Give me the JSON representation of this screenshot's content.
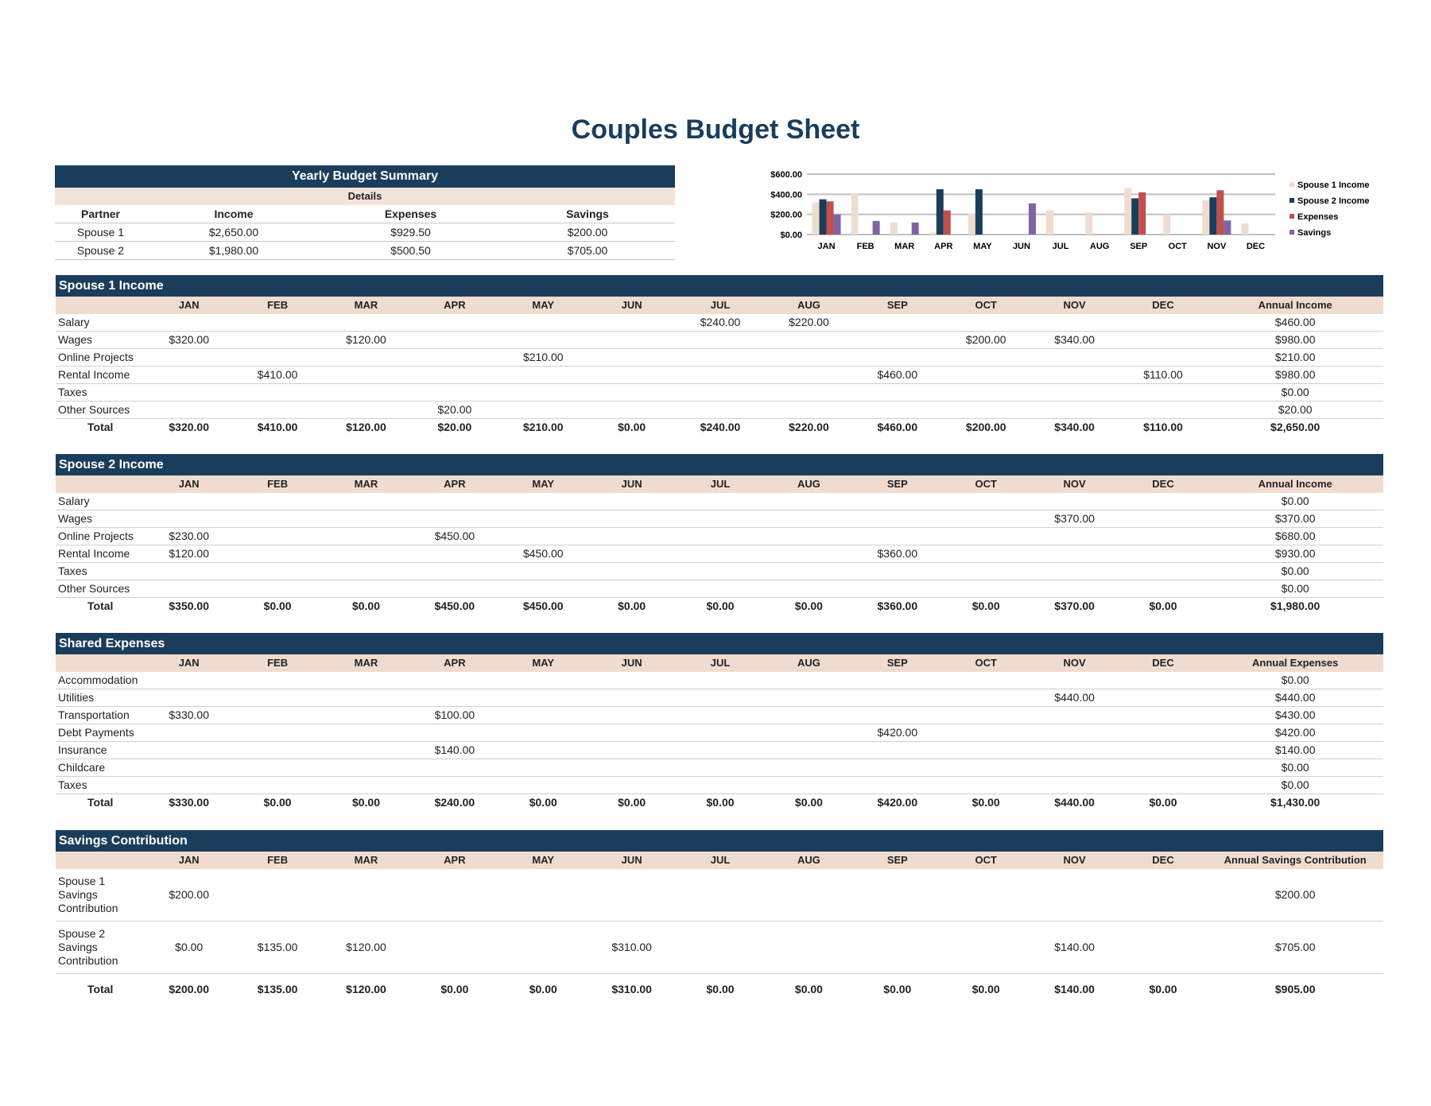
{
  "title": "Couples Budget Sheet",
  "summary": {
    "heading": "Yearly Budget Summary",
    "subheading": "Details",
    "columns": [
      "Partner",
      "Income",
      "Expenses",
      "Savings"
    ],
    "rows": [
      [
        "Spouse 1",
        "$2,650.00",
        "$929.50",
        "$200.00"
      ],
      [
        "Spouse 2",
        "$1,980.00",
        "$500.50",
        "$705.00"
      ]
    ]
  },
  "months": [
    "JAN",
    "FEB",
    "MAR",
    "APR",
    "MAY",
    "JUN",
    "JUL",
    "AUG",
    "SEP",
    "OCT",
    "NOV",
    "DEC"
  ],
  "sections": [
    {
      "title": "Spouse 1 Income",
      "annual_label": "Annual Income",
      "rows": [
        {
          "label": "Salary",
          "values": [
            "",
            "",
            "",
            "",
            "",
            "",
            "$240.00",
            "$220.00",
            "",
            "",
            "",
            ""
          ],
          "annual": "$460.00"
        },
        {
          "label": "Wages",
          "values": [
            "$320.00",
            "",
            "$120.00",
            "",
            "",
            "",
            "",
            "",
            "",
            "$200.00",
            "$340.00",
            ""
          ],
          "annual": "$980.00"
        },
        {
          "label": "Online Projects",
          "values": [
            "",
            "",
            "",
            "",
            "$210.00",
            "",
            "",
            "",
            "",
            "",
            "",
            ""
          ],
          "annual": "$210.00"
        },
        {
          "label": "Rental Income",
          "values": [
            "",
            "$410.00",
            "",
            "",
            "",
            "",
            "",
            "",
            "$460.00",
            "",
            "",
            "$110.00"
          ],
          "annual": "$980.00"
        },
        {
          "label": "Taxes",
          "values": [
            "",
            "",
            "",
            "",
            "",
            "",
            "",
            "",
            "",
            "",
            "",
            ""
          ],
          "annual": "$0.00"
        },
        {
          "label": "Other Sources",
          "values": [
            "",
            "",
            "",
            "$20.00",
            "",
            "",
            "",
            "",
            "",
            "",
            "",
            ""
          ],
          "annual": "$20.00"
        }
      ],
      "total": {
        "label": "Total",
        "values": [
          "$320.00",
          "$410.00",
          "$120.00",
          "$20.00",
          "$210.00",
          "$0.00",
          "$240.00",
          "$220.00",
          "$460.00",
          "$200.00",
          "$340.00",
          "$110.00"
        ],
        "annual": "$2,650.00"
      }
    },
    {
      "title": "Spouse 2 Income",
      "annual_label": "Annual Income",
      "rows": [
        {
          "label": "Salary",
          "values": [
            "",
            "",
            "",
            "",
            "",
            "",
            "",
            "",
            "",
            "",
            "",
            ""
          ],
          "annual": "$0.00"
        },
        {
          "label": "Wages",
          "values": [
            "",
            "",
            "",
            "",
            "",
            "",
            "",
            "",
            "",
            "",
            "$370.00",
            ""
          ],
          "annual": "$370.00"
        },
        {
          "label": "Online Projects",
          "values": [
            "$230.00",
            "",
            "",
            "$450.00",
            "",
            "",
            "",
            "",
            "",
            "",
            "",
            ""
          ],
          "annual": "$680.00"
        },
        {
          "label": "Rental Income",
          "values": [
            "$120.00",
            "",
            "",
            "",
            "$450.00",
            "",
            "",
            "",
            "$360.00",
            "",
            "",
            ""
          ],
          "annual": "$930.00"
        },
        {
          "label": "Taxes",
          "values": [
            "",
            "",
            "",
            "",
            "",
            "",
            "",
            "",
            "",
            "",
            "",
            ""
          ],
          "annual": "$0.00"
        },
        {
          "label": "Other Sources",
          "values": [
            "",
            "",
            "",
            "",
            "",
            "",
            "",
            "",
            "",
            "",
            "",
            ""
          ],
          "annual": "$0.00"
        }
      ],
      "total": {
        "label": "Total",
        "values": [
          "$350.00",
          "$0.00",
          "$0.00",
          "$450.00",
          "$450.00",
          "$0.00",
          "$0.00",
          "$0.00",
          "$360.00",
          "$0.00",
          "$370.00",
          "$0.00"
        ],
        "annual": "$1,980.00"
      }
    },
    {
      "title": "Shared Expenses",
      "annual_label": "Annual Expenses",
      "rows": [
        {
          "label": "Accommodation",
          "values": [
            "",
            "",
            "",
            "",
            "",
            "",
            "",
            "",
            "",
            "",
            "",
            ""
          ],
          "annual": "$0.00"
        },
        {
          "label": "Utilities",
          "values": [
            "",
            "",
            "",
            "",
            "",
            "",
            "",
            "",
            "",
            "",
            "$440.00",
            ""
          ],
          "annual": "$440.00"
        },
        {
          "label": "Transportation",
          "values": [
            "$330.00",
            "",
            "",
            "$100.00",
            "",
            "",
            "",
            "",
            "",
            "",
            "",
            ""
          ],
          "annual": "$430.00"
        },
        {
          "label": "Debt Payments",
          "values": [
            "",
            "",
            "",
            "",
            "",
            "",
            "",
            "",
            "$420.00",
            "",
            "",
            ""
          ],
          "annual": "$420.00"
        },
        {
          "label": "Insurance",
          "values": [
            "",
            "",
            "",
            "$140.00",
            "",
            "",
            "",
            "",
            "",
            "",
            "",
            ""
          ],
          "annual": "$140.00"
        },
        {
          "label": "Childcare",
          "values": [
            "",
            "",
            "",
            "",
            "",
            "",
            "",
            "",
            "",
            "",
            "",
            ""
          ],
          "annual": "$0.00"
        },
        {
          "label": "Taxes",
          "values": [
            "",
            "",
            "",
            "",
            "",
            "",
            "",
            "",
            "",
            "",
            "",
            ""
          ],
          "annual": "$0.00"
        }
      ],
      "total": {
        "label": "Total",
        "values": [
          "$330.00",
          "$0.00",
          "$0.00",
          "$240.00",
          "$0.00",
          "$0.00",
          "$0.00",
          "$0.00",
          "$420.00",
          "$0.00",
          "$440.00",
          "$0.00"
        ],
        "annual": "$1,430.00"
      }
    },
    {
      "title": "Savings Contribution",
      "annual_label": "Annual Savings Contribution",
      "tall": true,
      "rows": [
        {
          "label": "Spouse 1 Savings Contribution",
          "values": [
            "$200.00",
            "",
            "",
            "",
            "",
            "",
            "",
            "",
            "",
            "",
            "",
            ""
          ],
          "annual": "$200.00"
        },
        {
          "label": "Spouse 2 Savings Contribution",
          "values": [
            "$0.00",
            "$135.00",
            "$120.00",
            "",
            "",
            "$310.00",
            "",
            "",
            "",
            "",
            "$140.00",
            ""
          ],
          "annual": "$705.00"
        }
      ],
      "total": {
        "label": "Total",
        "values": [
          "$200.00",
          "$135.00",
          "$120.00",
          "$0.00",
          "$0.00",
          "$310.00",
          "$0.00",
          "$0.00",
          "$0.00",
          "$0.00",
          "$140.00",
          "$0.00"
        ],
        "annual": "$905.00"
      }
    }
  ],
  "chart_data": {
    "type": "bar",
    "categories": [
      "JAN",
      "FEB",
      "MAR",
      "APR",
      "MAY",
      "JUN",
      "JUL",
      "AUG",
      "SEP",
      "OCT",
      "NOV",
      "DEC"
    ],
    "series": [
      {
        "name": "Spouse 1 Income",
        "color": "#f0dccf",
        "values": [
          320,
          410,
          120,
          20,
          210,
          0,
          240,
          220,
          460,
          200,
          340,
          110
        ]
      },
      {
        "name": "Spouse 2 Income",
        "color": "#1b3d5c",
        "values": [
          350,
          0,
          0,
          450,
          450,
          0,
          0,
          0,
          360,
          0,
          370,
          0
        ]
      },
      {
        "name": "Expenses",
        "color": "#c0504d",
        "values": [
          330,
          0,
          0,
          240,
          0,
          0,
          0,
          0,
          420,
          0,
          440,
          0
        ]
      },
      {
        "name": "Savings",
        "color": "#8064a2",
        "values": [
          200,
          135,
          120,
          0,
          0,
          310,
          0,
          0,
          0,
          0,
          140,
          0
        ]
      }
    ],
    "yticks": [
      "$0.00",
      "$200.00",
      "$400.00",
      "$600.00"
    ],
    "ylim": [
      0,
      600
    ],
    "grid": true,
    "legend": "right"
  }
}
